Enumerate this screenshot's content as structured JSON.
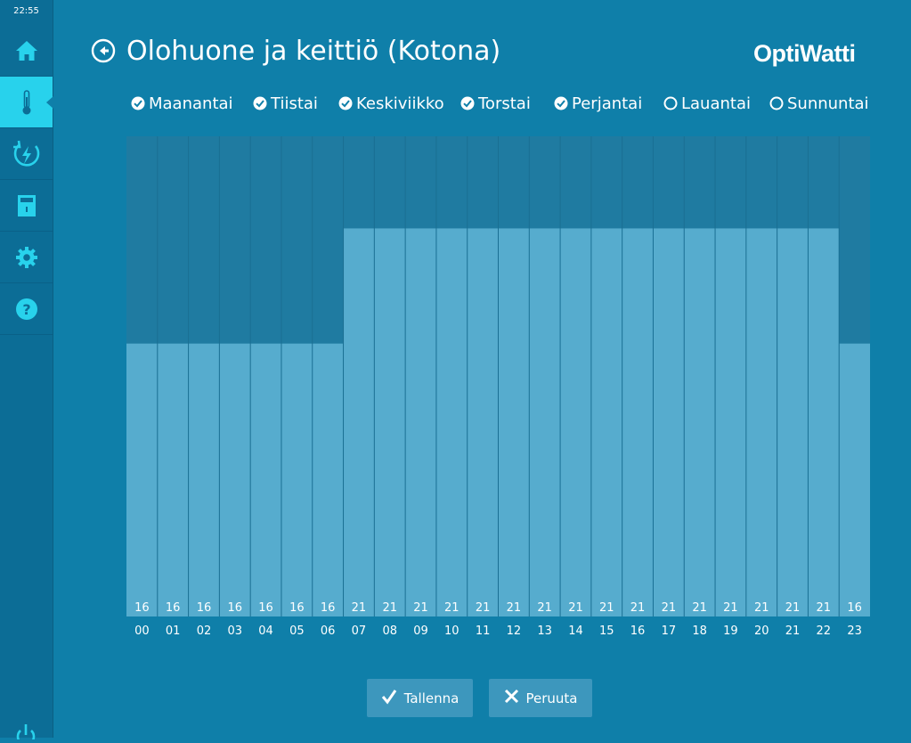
{
  "status": {
    "time": "22:55"
  },
  "nav": [
    {
      "icon": "home-icon"
    },
    {
      "icon": "thermometer-icon",
      "active": true
    },
    {
      "icon": "energy-icon"
    },
    {
      "icon": "device-icon"
    },
    {
      "icon": "gear-icon"
    },
    {
      "icon": "help-icon"
    }
  ],
  "header": {
    "title": "Olohuone ja keittiö (Kotona)",
    "logo": "OptiWatti"
  },
  "days": [
    {
      "label": "Maanantai",
      "checked": true
    },
    {
      "label": "Tiistai",
      "checked": true
    },
    {
      "label": "Keskiviikko",
      "checked": true
    },
    {
      "label": "Torstai",
      "checked": true
    },
    {
      "label": "Perjantai",
      "checked": true
    },
    {
      "label": "Lauantai",
      "checked": false
    },
    {
      "label": "Sunnuntai",
      "checked": false
    }
  ],
  "chart_data": {
    "type": "bar",
    "categories": [
      "00",
      "01",
      "02",
      "03",
      "04",
      "05",
      "06",
      "07",
      "08",
      "09",
      "10",
      "11",
      "12",
      "13",
      "14",
      "15",
      "16",
      "17",
      "18",
      "19",
      "20",
      "21",
      "22",
      "23"
    ],
    "values": [
      16,
      16,
      16,
      16,
      16,
      16,
      16,
      21,
      21,
      21,
      21,
      21,
      21,
      21,
      21,
      21,
      21,
      21,
      21,
      21,
      21,
      21,
      21,
      16
    ],
    "value_labels": [
      "16",
      "16",
      "16",
      "16",
      "16",
      "16",
      "16",
      "21",
      "21",
      "21",
      "21",
      "21",
      "21",
      "21",
      "21",
      "21",
      "21",
      "21",
      "21",
      "21",
      "21",
      "21",
      "21",
      "16"
    ],
    "ylim": [
      5,
      25
    ],
    "grid": false,
    "colors": {
      "bar": "#56acce",
      "background": "#1f7ba1",
      "value_strip": "#56acce"
    }
  },
  "actions": {
    "save_label": "Tallenna",
    "cancel_label": "Peruuta"
  },
  "colors": {
    "background": "#0f7fa9",
    "sidebar": "#0c6d96",
    "accent": "#28d2ec",
    "button": "#3d97bd"
  }
}
